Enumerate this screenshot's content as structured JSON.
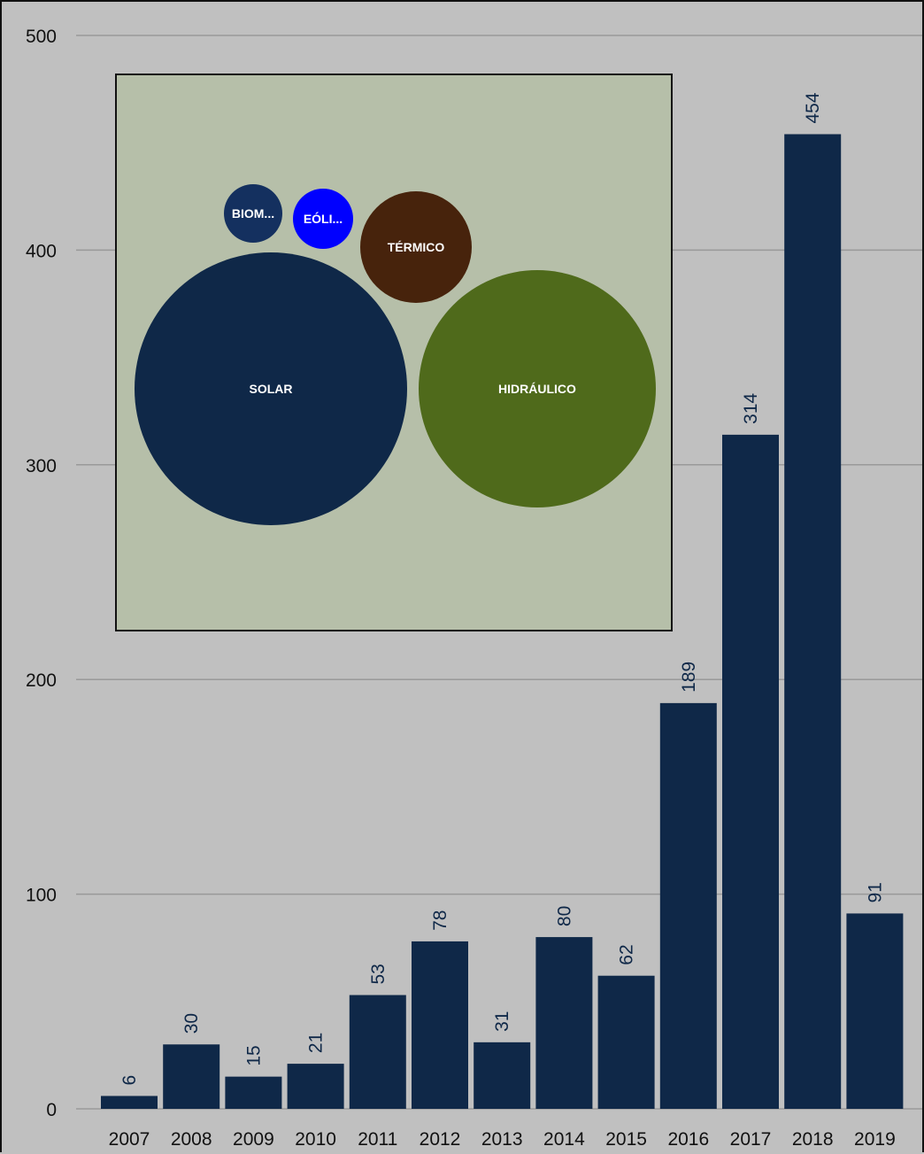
{
  "chart_data": [
    {
      "type": "bar",
      "categories": [
        "2007",
        "2008",
        "2009",
        "2010",
        "2011",
        "2012",
        "2013",
        "2014",
        "2015",
        "2016",
        "2017",
        "2018",
        "2019"
      ],
      "values": [
        6,
        30,
        15,
        21,
        53,
        78,
        31,
        80,
        62,
        189,
        314,
        454,
        91
      ],
      "title": "",
      "xlabel": "",
      "ylabel": "",
      "ylim": [
        0,
        500
      ],
      "yticks": [
        0,
        100,
        200,
        300,
        400,
        500
      ],
      "grid": true,
      "data_labels": true,
      "data_label_orientation": "vertical",
      "colors": {
        "bar": "#0f2848",
        "background": "#c0c0c0",
        "gridline": "#999999",
        "label": "#0f2848"
      }
    },
    {
      "type": "bubble",
      "inset": "top-left",
      "bubbles": [
        {
          "label": "SOLAR",
          "relative_size": 1.0,
          "color": "#0f2848"
        },
        {
          "label": "HIDRÁULICO",
          "relative_size": 0.77,
          "color": "#4f6a1b"
        },
        {
          "label": "TÉRMICO",
          "relative_size": 0.17,
          "color": "#47230c"
        },
        {
          "label": "EÓLI...",
          "relative_size": 0.05,
          "color": "#0000ff"
        },
        {
          "label": "BIOM...",
          "relative_size": 0.05,
          "color": "#14305f"
        }
      ],
      "colors": {
        "background": "#b6bfa9",
        "border": "#111111"
      }
    }
  ]
}
